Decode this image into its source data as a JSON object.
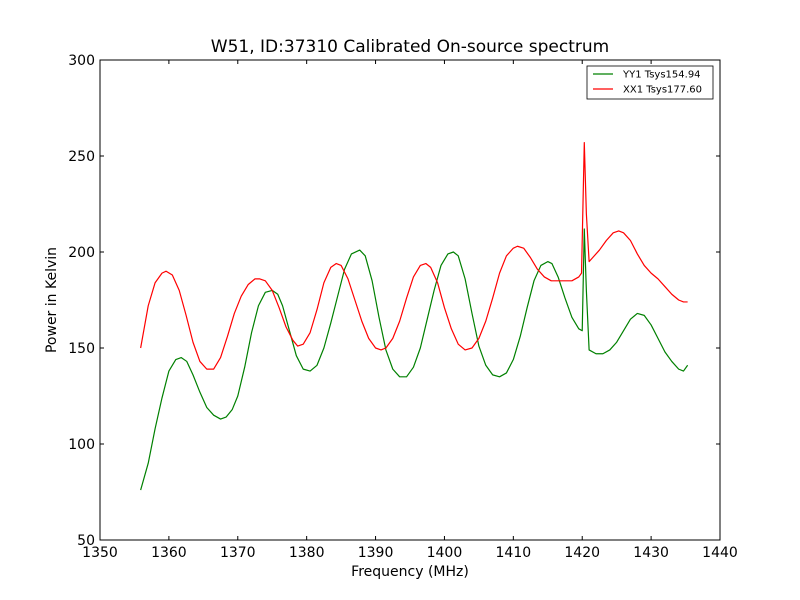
{
  "chart_data": {
    "type": "line",
    "title": "W51, ID:37310 Calibrated On-source spectrum",
    "xlabel": "Frequency (MHz)",
    "ylabel": "Power in Kelvin",
    "xlim": [
      1350,
      1440
    ],
    "ylim": [
      50,
      300
    ],
    "xticks": [
      1350,
      1360,
      1370,
      1380,
      1390,
      1400,
      1410,
      1420,
      1430,
      1440
    ],
    "yticks": [
      50,
      100,
      150,
      200,
      250,
      300
    ],
    "grid": false,
    "legend_position": "top-right",
    "series": [
      {
        "name": "YY1 Tsys154.94",
        "color": "#008000",
        "x": [
          1355.9,
          1357.0,
          1358.0,
          1359.0,
          1360.0,
          1361.0,
          1361.8,
          1362.6,
          1363.5,
          1364.5,
          1365.5,
          1366.5,
          1367.5,
          1368.3,
          1369.2,
          1370.0,
          1371.0,
          1372.0,
          1373.0,
          1374.0,
          1375.0,
          1375.8,
          1376.5,
          1377.5,
          1378.5,
          1379.5,
          1380.5,
          1381.5,
          1382.5,
          1383.5,
          1384.5,
          1385.5,
          1386.5,
          1387.7,
          1388.5,
          1389.5,
          1390.5,
          1391.5,
          1392.5,
          1393.5,
          1394.5,
          1395.5,
          1396.5,
          1397.5,
          1398.5,
          1399.5,
          1400.5,
          1401.3,
          1402.0,
          1403.0,
          1404.0,
          1405.0,
          1406.0,
          1407.0,
          1408.0,
          1409.0,
          1410.0,
          1411.0,
          1412.0,
          1413.0,
          1414.0,
          1415.0,
          1415.6,
          1416.5,
          1417.5,
          1418.5,
          1419.5,
          1420.0,
          1420.3,
          1420.6,
          1421.0,
          1422.0,
          1423.0,
          1424.0,
          1425.0,
          1426.0,
          1427.0,
          1428.0,
          1429.0,
          1430.0,
          1431.0,
          1432.0,
          1433.0,
          1434.0,
          1434.7,
          1435.3
        ],
        "y": [
          76,
          90,
          108,
          124,
          138,
          144,
          145,
          143,
          136,
          127,
          119,
          115,
          113,
          114,
          118,
          125,
          140,
          158,
          172,
          179,
          180,
          178,
          172,
          159,
          146,
          139,
          138,
          141,
          150,
          163,
          177,
          191,
          199,
          201,
          198,
          185,
          166,
          149,
          139,
          135,
          135,
          140,
          150,
          165,
          180,
          193,
          199,
          200,
          198,
          186,
          168,
          151,
          141,
          136,
          135,
          137,
          144,
          156,
          171,
          185,
          193,
          195,
          194,
          187,
          176,
          166,
          160,
          159,
          212,
          180,
          149,
          147,
          147,
          149,
          153,
          159,
          165,
          168,
          167,
          162,
          155,
          148,
          143,
          139,
          138,
          141
        ]
      },
      {
        "name": "XX1 Tsys177.60",
        "color": "#ff0000",
        "x": [
          1355.9,
          1357.0,
          1358.0,
          1359.0,
          1359.6,
          1360.5,
          1361.5,
          1362.5,
          1363.5,
          1364.5,
          1365.5,
          1366.5,
          1367.5,
          1368.5,
          1369.5,
          1370.5,
          1371.5,
          1372.5,
          1373.2,
          1374.0,
          1375.0,
          1376.0,
          1377.0,
          1378.0,
          1378.7,
          1379.5,
          1380.5,
          1381.5,
          1382.5,
          1383.5,
          1384.3,
          1385.0,
          1386.0,
          1387.0,
          1388.0,
          1389.0,
          1390.0,
          1390.8,
          1391.5,
          1392.5,
          1393.5,
          1394.5,
          1395.5,
          1396.5,
          1397.3,
          1398.0,
          1399.0,
          1400.0,
          1401.0,
          1402.0,
          1403.0,
          1404.0,
          1405.0,
          1406.0,
          1407.0,
          1408.0,
          1409.0,
          1410.0,
          1410.6,
          1411.5,
          1412.5,
          1413.5,
          1414.5,
          1415.5,
          1416.5,
          1417.5,
          1418.5,
          1419.5,
          1419.9,
          1420.3,
          1420.6,
          1421.0,
          1421.5,
          1422.5,
          1423.5,
          1424.5,
          1425.3,
          1426.0,
          1427.0,
          1428.0,
          1429.0,
          1430.0,
          1431.0,
          1432.0,
          1433.0,
          1434.0,
          1434.7,
          1435.3
        ],
        "y": [
          150,
          172,
          184,
          189,
          190,
          188,
          180,
          167,
          153,
          143,
          139,
          139,
          145,
          156,
          168,
          177,
          183,
          186,
          186,
          185,
          180,
          171,
          161,
          154,
          151,
          152,
          158,
          170,
          184,
          192,
          194,
          193,
          186,
          175,
          164,
          155,
          150,
          149,
          150,
          155,
          164,
          176,
          187,
          193,
          194,
          192,
          184,
          171,
          160,
          152,
          149,
          150,
          155,
          164,
          176,
          189,
          198,
          202,
          203,
          202,
          197,
          191,
          187,
          185,
          185,
          185,
          185,
          187,
          189,
          257,
          220,
          195,
          197,
          201,
          206,
          210,
          211,
          210,
          206,
          199,
          193,
          189,
          186,
          182,
          178,
          175,
          174,
          174
        ]
      }
    ]
  }
}
